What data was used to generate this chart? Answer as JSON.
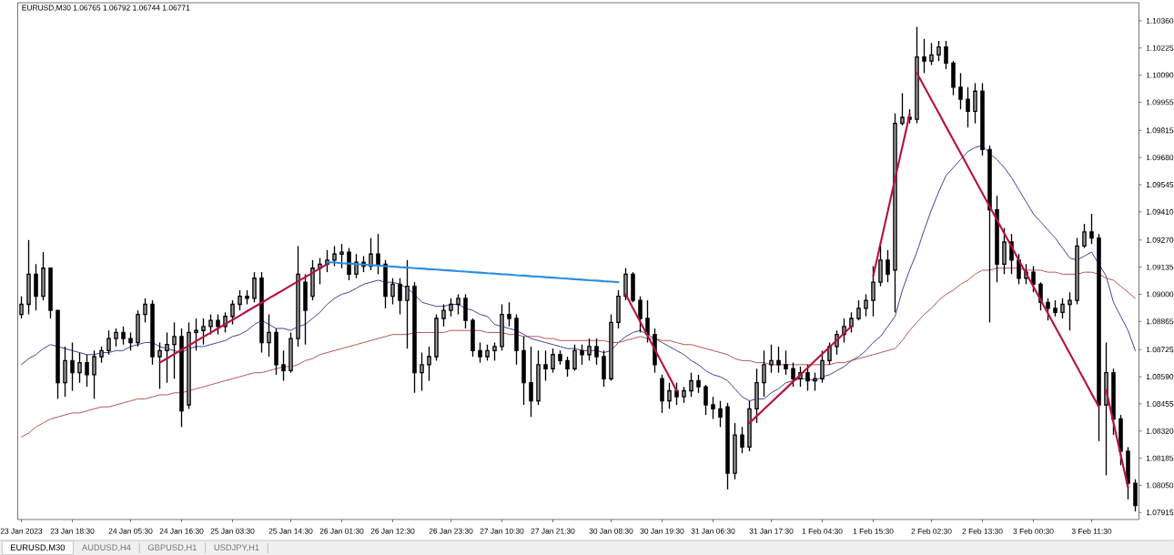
{
  "chart_data": {
    "type": "candlestick",
    "title": "EURUSD,M30 1.06765 1.06792 1.06744 1.06771",
    "color": "#000000",
    "categories": [
      "23 Jan 2023",
      null,
      null,
      null,
      null,
      null,
      null,
      "23 Jan 18:30",
      null,
      null,
      null,
      null,
      null,
      null,
      null,
      "24 Jan 05:30",
      null,
      null,
      null,
      null,
      null,
      null,
      "24 Jan 16:30",
      null,
      null,
      null,
      null,
      null,
      null,
      "25 Jan 03:30",
      null,
      null,
      null,
      null,
      null,
      null,
      null,
      "25 Jan 14:30",
      null,
      null,
      null,
      null,
      null,
      null,
      "26 Jan 01:30",
      null,
      null,
      null,
      null,
      null,
      null,
      "26 Jan 12:30",
      null,
      null,
      null,
      null,
      null,
      null,
      null,
      "26 Jan 23:30",
      null,
      null,
      null,
      null,
      null,
      null,
      "27 Jan 10:30",
      null,
      null,
      null,
      null,
      null,
      null,
      "27 Jan 21:30",
      null,
      null,
      null,
      null,
      null,
      null,
      null,
      "30 Jan 08:30",
      null,
      null,
      null,
      null,
      null,
      null,
      "30 Jan 19:30",
      null,
      null,
      null,
      null,
      null,
      null,
      "31 Jan 06:30",
      null,
      null,
      null,
      null,
      null,
      null,
      null,
      "31 Jan 17:30",
      null,
      null,
      null,
      null,
      null,
      null,
      "1 Feb 04:30",
      null,
      null,
      null,
      null,
      null,
      null,
      "1 Feb 15:30",
      null,
      null,
      null,
      null,
      null,
      null,
      null,
      "2 Feb 02:30",
      null,
      null,
      null,
      null,
      null,
      null,
      "2 Feb 13:30",
      null,
      null,
      null,
      null,
      null,
      null,
      "3 Feb 00:30",
      null,
      null,
      null,
      null,
      null,
      null,
      null,
      "3 Feb 11:30",
      null,
      null,
      null,
      null,
      null,
      null
    ],
    "ohlc": [
      [
        1.089,
        1.0899,
        1.0888,
        1.0895
      ],
      [
        1.0895,
        1.0927,
        1.089,
        1.091
      ],
      [
        1.091,
        1.0915,
        1.0892,
        1.0899
      ],
      [
        1.0899,
        1.0921,
        1.0897,
        1.0913
      ],
      [
        1.0913,
        1.0913,
        1.0888,
        1.0892
      ],
      [
        1.0892,
        1.0892,
        1.0848,
        1.0856
      ],
      [
        1.0856,
        1.0874,
        1.0849,
        1.0867
      ],
      [
        1.0867,
        1.0876,
        1.0852,
        1.0861
      ],
      [
        1.0861,
        1.0871,
        1.0856,
        1.0866
      ],
      [
        1.0866,
        1.087,
        1.0854,
        1.086
      ],
      [
        1.086,
        1.0872,
        1.0848,
        1.0869
      ],
      [
        1.0869,
        1.0874,
        1.0866,
        1.0872
      ],
      [
        1.0872,
        1.0882,
        1.087,
        1.0878
      ],
      [
        1.0878,
        1.0883,
        1.0874,
        1.0881
      ],
      [
        1.0881,
        1.0884,
        1.0875,
        1.0878
      ],
      [
        1.0878,
        1.0881,
        1.0872,
        1.0876
      ],
      [
        1.0876,
        1.0892,
        1.0874,
        1.089
      ],
      [
        1.089,
        1.0898,
        1.0886,
        1.0895
      ],
      [
        1.0895,
        1.0897,
        1.0865,
        1.0869
      ],
      [
        1.0869,
        1.0876,
        1.0853,
        1.0872
      ],
      [
        1.0872,
        1.0881,
        1.0856,
        1.0875
      ],
      [
        1.0875,
        1.0886,
        1.0858,
        1.0879
      ],
      [
        1.0879,
        1.0883,
        1.0834,
        1.0842
      ],
      [
        1.0845,
        1.0886,
        1.0843,
        1.0881
      ],
      [
        1.0881,
        1.0888,
        1.0872,
        1.0882
      ],
      [
        1.0882,
        1.0888,
        1.0875,
        1.0884
      ],
      [
        1.0884,
        1.089,
        1.088,
        1.0887
      ],
      [
        1.0887,
        1.089,
        1.088,
        1.0884
      ],
      [
        1.0884,
        1.0891,
        1.0881,
        1.0889
      ],
      [
        1.0889,
        1.0897,
        1.0885,
        1.0895
      ],
      [
        1.0895,
        1.0902,
        1.0892,
        1.0899
      ],
      [
        1.0899,
        1.0902,
        1.0895,
        1.0898
      ],
      [
        1.0898,
        1.0911,
        1.0896,
        1.0908
      ],
      [
        1.0908,
        1.0911,
        1.0871,
        1.0876
      ],
      [
        1.0876,
        1.089,
        1.0869,
        1.0881
      ],
      [
        1.0881,
        1.0883,
        1.086,
        1.0865
      ],
      [
        1.0865,
        1.0872,
        1.0857,
        1.0862
      ],
      [
        1.0862,
        1.0881,
        1.0861,
        1.0878
      ],
      [
        1.0878,
        1.0924,
        1.0874,
        1.091
      ],
      [
        1.0906,
        1.091,
        1.0875,
        1.0892
      ],
      [
        1.0899,
        1.0917,
        1.0897,
        1.0913
      ],
      [
        1.0913,
        1.0918,
        1.0905,
        1.0915
      ],
      [
        1.0915,
        1.0922,
        1.0911,
        1.0917
      ],
      [
        1.0917,
        1.0924,
        1.0914,
        1.092
      ],
      [
        1.092,
        1.0925,
        1.0913,
        1.0921
      ],
      [
        1.0921,
        1.0923,
        1.0907,
        1.091
      ],
      [
        1.091,
        1.092,
        1.0908,
        1.0916
      ],
      [
        1.0916,
        1.0919,
        1.0911,
        1.0914
      ],
      [
        1.0914,
        1.0928,
        1.0912,
        1.092
      ],
      [
        1.092,
        1.093,
        1.091,
        1.0915
      ],
      [
        1.0915,
        1.0917,
        1.0893,
        1.0899
      ],
      [
        1.0899,
        1.0908,
        1.0895,
        1.0905
      ],
      [
        1.0905,
        1.0908,
        1.089,
        1.0897
      ],
      [
        1.0897,
        1.0917,
        1.0873,
        1.0904
      ],
      [
        1.0904,
        1.0906,
        1.0851,
        1.0861
      ],
      [
        1.0861,
        1.0871,
        1.0852,
        1.0865
      ],
      [
        1.0865,
        1.0874,
        1.0857,
        1.0869
      ],
      [
        1.0869,
        1.089,
        1.0867,
        1.0888
      ],
      [
        1.0888,
        1.0895,
        1.0884,
        1.0892
      ],
      [
        1.0892,
        1.0898,
        1.0889,
        1.0895
      ],
      [
        1.0895,
        1.09,
        1.089,
        1.0898
      ],
      [
        1.0898,
        1.09,
        1.0883,
        1.0887
      ],
      [
        1.0887,
        1.0888,
        1.0869,
        1.0872
      ],
      [
        1.0872,
        1.0876,
        1.0866,
        1.0869
      ],
      [
        1.0869,
        1.0875,
        1.0867,
        1.0872
      ],
      [
        1.0872,
        1.0876,
        1.0867,
        1.0874
      ],
      [
        1.0874,
        1.0895,
        1.0872,
        1.089
      ],
      [
        1.089,
        1.0896,
        1.0884,
        1.0888
      ],
      [
        1.0888,
        1.089,
        1.0865,
        1.0872
      ],
      [
        1.0872,
        1.0879,
        1.0845,
        1.0856
      ],
      [
        1.0856,
        1.0874,
        1.0839,
        1.0847
      ],
      [
        1.0847,
        1.0872,
        1.0845,
        1.0865
      ],
      [
        1.0865,
        1.0872,
        1.0857,
        1.0863
      ],
      [
        1.0863,
        1.0873,
        1.0861,
        1.087
      ],
      [
        1.087,
        1.0872,
        1.0865,
        1.0867
      ],
      [
        1.0867,
        1.0869,
        1.0859,
        1.0863
      ],
      [
        1.0863,
        1.0875,
        1.0862,
        1.0872
      ],
      [
        1.0872,
        1.0875,
        1.0865,
        1.087
      ],
      [
        1.087,
        1.0878,
        1.0867,
        1.0874
      ],
      [
        1.0874,
        1.0878,
        1.0865,
        1.0869
      ],
      [
        1.0869,
        1.0872,
        1.0854,
        1.0858
      ],
      [
        1.0858,
        1.089,
        1.0857,
        1.0886
      ],
      [
        1.0886,
        1.0902,
        1.0883,
        1.0899
      ],
      [
        1.0899,
        1.0913,
        1.0897,
        1.091
      ],
      [
        1.091,
        1.0911,
        1.0896,
        1.0897
      ],
      [
        1.0897,
        1.0899,
        1.0881,
        1.0888
      ],
      [
        1.0888,
        1.0897,
        1.0876,
        1.088
      ],
      [
        1.088,
        1.0883,
        1.0861,
        1.0865
      ],
      [
        1.0858,
        1.086,
        1.0841,
        1.0847
      ],
      [
        1.0847,
        1.0856,
        1.0843,
        1.0852
      ],
      [
        1.0852,
        1.0856,
        1.0845,
        1.0849
      ],
      [
        1.0849,
        1.0854,
        1.0846,
        1.0852
      ],
      [
        1.0852,
        1.0861,
        1.0849,
        1.0857
      ],
      [
        1.0857,
        1.086,
        1.0851,
        1.0854
      ],
      [
        1.0854,
        1.0855,
        1.084,
        1.0845
      ],
      [
        1.0845,
        1.0849,
        1.0838,
        1.0843
      ],
      [
        1.0843,
        1.0847,
        1.0834,
        1.0839
      ],
      [
        1.0844,
        1.0846,
        1.0803,
        1.0811
      ],
      [
        1.0811,
        1.0836,
        1.0808,
        1.083
      ],
      [
        1.083,
        1.0834,
        1.0821,
        1.0824
      ],
      [
        1.0824,
        1.0847,
        1.0822,
        1.0843
      ],
      [
        1.0843,
        1.0863,
        1.0836,
        1.0856
      ],
      [
        1.0856,
        1.0872,
        1.0849,
        1.0865
      ],
      [
        1.0865,
        1.0875,
        1.0861,
        1.0867
      ],
      [
        1.0867,
        1.0874,
        1.0861,
        1.0865
      ],
      [
        1.0865,
        1.0872,
        1.086,
        1.0863
      ],
      [
        1.0863,
        1.0866,
        1.0854,
        1.0858
      ],
      [
        1.0858,
        1.0864,
        1.0854,
        1.0861
      ],
      [
        1.0861,
        1.0865,
        1.0852,
        1.0857
      ],
      [
        1.0857,
        1.0861,
        1.0852,
        1.0858
      ],
      [
        1.0858,
        1.0872,
        1.0856,
        1.0867
      ],
      [
        1.0867,
        1.0876,
        1.0865,
        1.0874
      ],
      [
        1.0874,
        1.0882,
        1.087,
        1.088
      ],
      [
        1.088,
        1.0888,
        1.0876,
        1.0884
      ],
      [
        1.0884,
        1.0891,
        1.0881,
        1.0888
      ],
      [
        1.0888,
        1.0897,
        1.0887,
        1.0893
      ],
      [
        1.0893,
        1.09,
        1.0889,
        1.0897
      ],
      [
        1.0897,
        1.0914,
        1.0889,
        1.0906
      ],
      [
        1.0906,
        1.0924,
        1.0904,
        1.0917
      ],
      [
        1.0917,
        1.0922,
        1.0906,
        1.091
      ],
      [
        1.0912,
        1.099,
        1.0891,
        1.0985
      ],
      [
        1.0985,
        1.1,
        1.0984,
        1.0988
      ],
      [
        1.0988,
        1.0992,
        1.0985,
        1.0987
      ],
      [
        1.0987,
        1.1033,
        1.0985,
        1.1018
      ],
      [
        1.1018,
        1.1027,
        1.101,
        1.1016
      ],
      [
        1.1016,
        1.1025,
        1.1014,
        1.1019
      ],
      [
        1.1019,
        1.1026,
        1.1016,
        1.1023
      ],
      [
        1.1023,
        1.1026,
        1.1012,
        1.1015
      ],
      [
        1.1015,
        1.1016,
        1.0999,
        1.1003
      ],
      [
        1.1003,
        1.101,
        1.0992,
        1.0997
      ],
      [
        1.0997,
        1.1003,
        1.0983,
        1.0991
      ],
      [
        1.0991,
        1.1005,
        1.0985,
        1.1001
      ],
      [
        1.1001,
        1.1005,
        1.0969,
        1.0972
      ],
      [
        1.0972,
        1.0974,
        1.0886,
        1.0942
      ],
      [
        1.0942,
        1.0949,
        1.0906,
        1.0915
      ],
      [
        1.0915,
        1.0933,
        1.091,
        1.0926
      ],
      [
        1.0926,
        1.093,
        1.091,
        1.0917
      ],
      [
        1.0917,
        1.092,
        1.0905,
        1.0908
      ],
      [
        1.0908,
        1.0915,
        1.0905,
        1.0911
      ],
      [
        1.0911,
        1.0914,
        1.0901,
        1.0905
      ],
      [
        1.0905,
        1.0906,
        1.0892,
        1.0896
      ],
      [
        1.0896,
        1.0898,
        1.0887,
        1.0893
      ],
      [
        1.0893,
        1.0897,
        1.0889,
        1.0891
      ],
      [
        1.0891,
        1.0898,
        1.0888,
        1.0895
      ],
      [
        1.0895,
        1.0901,
        1.0882,
        1.0897
      ],
      [
        1.0897,
        1.0928,
        1.0895,
        1.0924
      ],
      [
        1.0924,
        1.0935,
        1.0923,
        1.0931
      ],
      [
        1.0931,
        1.094,
        1.0925,
        1.0928
      ],
      [
        1.0928,
        1.093,
        1.0827,
        1.0845
      ],
      [
        1.0845,
        1.0876,
        1.081,
        1.0861
      ],
      [
        1.0861,
        1.0863,
        1.083,
        1.0838
      ],
      [
        1.0838,
        1.084,
        1.0815,
        1.0822
      ],
      [
        1.0822,
        1.0824,
        1.0798,
        1.0806
      ],
      [
        1.0806,
        1.0808,
        1.0792,
        1.0795
      ]
    ],
    "series": [
      {
        "type": "line",
        "color": "#35358f",
        "values": [
          1.0865,
          1.0868,
          1.087,
          1.0873,
          1.0875,
          1.0874,
          1.0873,
          1.0872,
          1.0871,
          1.087,
          1.087,
          1.0871,
          1.0871,
          1.0872,
          1.0872,
          1.0874,
          1.0875,
          1.0876,
          1.0876,
          1.0874,
          1.0873,
          1.0872,
          1.0871,
          1.0873,
          1.0874,
          1.0874,
          1.0875,
          1.0876,
          1.0877,
          1.0879,
          1.088,
          1.0882,
          1.0885,
          1.0887,
          1.0885,
          1.0883,
          1.0883,
          1.0882,
          1.0884,
          1.0885,
          1.0888,
          1.0891,
          1.0895,
          1.0898,
          1.09,
          1.0901,
          1.0903,
          1.0905,
          1.0906,
          1.0907,
          1.0906,
          1.0906,
          1.0905,
          1.0903,
          1.09,
          1.0896,
          1.0895,
          1.0894,
          1.0894,
          1.0895,
          1.0895,
          1.0893,
          1.0892,
          1.089,
          1.0889,
          1.0885,
          1.0884,
          1.0883,
          1.0882,
          1.088,
          1.0878,
          1.0877,
          1.0876,
          1.0875,
          1.0874,
          1.0873,
          1.0873,
          1.0872,
          1.0872,
          1.0872,
          1.0871,
          1.0872,
          1.0876,
          1.0879,
          1.0881,
          1.0882,
          1.088,
          1.0878,
          1.0876,
          1.0874,
          1.0872,
          1.087,
          1.0867,
          1.0865,
          1.0862,
          1.086,
          1.0859,
          1.0857,
          1.0853,
          1.0849,
          1.0847,
          1.0848,
          1.0848,
          1.0851,
          1.0853,
          1.0856,
          1.0857,
          1.0858,
          1.0858,
          1.0857,
          1.0859,
          1.086,
          1.0862,
          1.0864,
          1.0867,
          1.0869,
          1.0872,
          1.0876,
          1.0879,
          1.0884,
          1.0889,
          1.0902,
          1.0912,
          1.0921,
          1.0932,
          1.0942,
          1.0951,
          1.0959,
          1.0963,
          1.0967,
          1.0971,
          1.0973,
          1.0974,
          1.097,
          1.0967,
          1.0963,
          1.0958,
          1.0952,
          1.0946,
          1.094,
          1.0936,
          1.0932,
          1.0928,
          1.0923,
          1.0918,
          1.0917,
          1.0919,
          1.0921,
          1.0915,
          1.0909,
          1.0896,
          1.0889,
          1.0882,
          1.0872
        ]
      },
      {
        "type": "line",
        "color": "#b24a4a",
        "values": [
          1.0829,
          1.0831,
          1.0834,
          1.0836,
          1.0838,
          1.0839,
          1.084,
          1.0841,
          1.0841,
          1.0842,
          1.0843,
          1.0844,
          1.0844,
          1.0845,
          1.0846,
          1.0847,
          1.0848,
          1.0848,
          1.0849,
          1.085,
          1.085,
          1.0851,
          1.0851,
          1.0852,
          1.0853,
          1.0854,
          1.0855,
          1.0856,
          1.0857,
          1.0858,
          1.0859,
          1.086,
          1.0861,
          1.0861,
          1.0862,
          1.0863,
          1.0864,
          1.0864,
          1.0865,
          1.0867,
          1.0868,
          1.087,
          1.0871,
          1.0872,
          1.0873,
          1.0874,
          1.0875,
          1.0876,
          1.0877,
          1.0878,
          1.0879,
          1.088,
          1.088,
          1.088,
          1.0881,
          1.0881,
          1.0881,
          1.0881,
          1.0881,
          1.0882,
          1.0882,
          1.0882,
          1.0882,
          1.0882,
          1.0881,
          1.0881,
          1.0881,
          1.088,
          1.088,
          1.0879,
          1.0879,
          1.0879,
          1.0878,
          1.0878,
          1.0877,
          1.0877,
          1.0877,
          1.0877,
          1.0877,
          1.0877,
          1.0877,
          1.0876,
          1.0876,
          1.0877,
          1.0878,
          1.0879,
          1.0878,
          1.0878,
          1.0877,
          1.0877,
          1.0876,
          1.0875,
          1.0875,
          1.0874,
          1.0873,
          1.0872,
          1.0871,
          1.087,
          1.0868,
          1.0867,
          1.0867,
          1.0866,
          1.0866,
          1.0865,
          1.0865,
          1.0865,
          1.0865,
          1.0865,
          1.0865,
          1.0865,
          1.0865,
          1.0865,
          1.0866,
          1.0866,
          1.0867,
          1.0868,
          1.0869,
          1.087,
          1.0871,
          1.0872,
          1.0873,
          1.0877,
          1.0882,
          1.0886,
          1.089,
          1.0893,
          1.0897,
          1.09,
          1.0902,
          1.0905,
          1.0907,
          1.091,
          1.0912,
          1.0912,
          1.0913,
          1.0913,
          1.0913,
          1.0913,
          1.0912,
          1.0912,
          1.0912,
          1.0911,
          1.0911,
          1.091,
          1.091,
          1.091,
          1.0911,
          1.0911,
          1.091,
          1.0908,
          1.0907,
          1.0904,
          1.0901,
          1.0898
        ]
      },
      {
        "type": "line",
        "color": "#b8123f",
        "values": [
          null,
          null,
          null,
          null,
          null,
          null,
          null,
          null,
          null,
          null,
          null,
          null,
          null,
          null,
          null,
          null,
          null,
          null,
          null,
          1.0866,
          1.08681,
          1.08703,
          1.08724,
          1.08745,
          1.08767,
          1.08788,
          1.08809,
          1.0883,
          1.08852,
          1.08873,
          1.08894,
          1.08916,
          1.08937,
          1.08958,
          1.0898,
          1.09001,
          1.09022,
          1.09043,
          1.09065,
          1.09086,
          1.09107,
          1.09129,
          1.0915,
          null,
          null,
          null,
          null,
          null,
          null,
          null,
          null,
          null,
          null,
          null,
          null,
          null,
          null,
          null,
          null,
          null,
          null,
          null,
          null,
          null,
          null,
          null,
          null,
          null,
          null,
          null,
          null,
          null,
          null,
          null,
          null,
          null,
          null,
          null,
          null,
          null,
          null,
          null,
          null,
          null,
          null,
          null,
          null,
          null,
          null,
          null,
          null,
          null,
          null,
          null,
          null,
          null,
          null,
          null,
          null,
          null,
          1.0836,
          1.08394,
          1.08429,
          1.08463,
          1.08497,
          1.08531,
          1.08566,
          1.086,
          1.08634,
          1.08669,
          1.08703,
          1.08737,
          1.08771,
          1.08806,
          1.0884,
          null,
          null,
          null,
          null,
          null,
          null,
          null,
          null,
          1.101,
          1.10034,
          1.09967,
          1.09901,
          1.09834,
          1.09768,
          1.09702,
          1.09635,
          1.09569,
          1.09502,
          1.09436,
          1.0937,
          1.09303,
          1.09237,
          1.0917,
          1.09104,
          1.09038,
          1.08971,
          1.08905,
          1.08838,
          1.08772,
          1.08706,
          1.08639,
          1.08573,
          1.08506,
          1.0844,
          null,
          null,
          null,
          null,
          null
        ]
      },
      {
        "type": "line",
        "color": "#b8123f",
        "values": [
          null,
          null,
          null,
          null,
          null,
          null,
          null,
          null,
          null,
          null,
          null,
          null,
          null,
          null,
          null,
          null,
          null,
          null,
          null,
          null,
          null,
          null,
          null,
          null,
          null,
          null,
          null,
          null,
          null,
          null,
          null,
          null,
          null,
          null,
          null,
          null,
          null,
          null,
          null,
          null,
          null,
          null,
          null,
          null,
          null,
          null,
          null,
          null,
          null,
          null,
          null,
          null,
          null,
          null,
          null,
          null,
          null,
          null,
          null,
          null,
          null,
          null,
          null,
          null,
          null,
          null,
          null,
          null,
          null,
          null,
          null,
          null,
          null,
          null,
          null,
          null,
          null,
          null,
          null,
          null,
          null,
          null,
          null,
          1.09,
          1.08931,
          1.08863,
          1.08794,
          1.08726,
          1.08657,
          1.08589,
          1.0852,
          null,
          null,
          null,
          null,
          null,
          null,
          null,
          null,
          null,
          null,
          null,
          null,
          null,
          null,
          null,
          null,
          null,
          null,
          null,
          null,
          null,
          null,
          null,
          null,
          null,
          null,
          1.09091,
          1.09252,
          1.09413,
          1.09574,
          1.09734,
          1.09895,
          null,
          null,
          null,
          null,
          null,
          null,
          null,
          null,
          null,
          null,
          null,
          null,
          null,
          null,
          null,
          null,
          null,
          null,
          null,
          null,
          null,
          null,
          null,
          null,
          null,
          null,
          1.08524,
          1.08362,
          1.082,
          1.08038,
          null
        ]
      },
      {
        "type": "line",
        "color": "#2a8de0",
        "values": [
          null,
          null,
          null,
          null,
          null,
          null,
          null,
          null,
          null,
          null,
          null,
          null,
          null,
          null,
          null,
          null,
          null,
          null,
          null,
          null,
          null,
          null,
          null,
          null,
          null,
          null,
          null,
          null,
          null,
          null,
          null,
          null,
          null,
          null,
          null,
          null,
          null,
          null,
          null,
          null,
          null,
          null,
          1.0916,
          1.09158,
          1.09155,
          1.09153,
          1.0915,
          1.09148,
          1.09145,
          1.09143,
          1.0914,
          1.09138,
          1.09135,
          1.09133,
          1.0913,
          1.09128,
          1.09125,
          1.09123,
          1.0912,
          1.09118,
          1.09115,
          1.09113,
          1.0911,
          1.09108,
          1.09105,
          1.09103,
          1.091,
          1.09098,
          1.09095,
          1.09093,
          1.0909,
          1.09088,
          1.09085,
          1.09083,
          1.0908,
          1.09078,
          1.09075,
          1.09073,
          1.0907,
          1.09068,
          1.09065,
          1.09063,
          1.0906,
          null,
          null,
          null,
          null,
          null,
          null,
          null,
          null,
          null,
          null,
          null,
          null,
          null,
          null,
          null,
          null,
          null,
          null,
          null,
          null,
          null,
          null,
          null,
          null,
          null,
          null,
          null,
          null,
          null,
          null,
          null,
          null,
          null,
          null,
          null,
          null,
          null,
          null,
          null,
          null,
          null,
          null,
          null,
          null,
          null,
          null,
          null,
          null,
          null,
          null,
          null,
          null,
          null,
          null,
          null,
          null,
          null,
          null,
          null,
          null,
          null,
          null,
          null,
          null,
          null,
          null,
          null,
          null,
          null,
          null,
          null
        ]
      }
    ],
    "ylim": [
      1.0788,
      1.1045
    ],
    "yticks": [
      {
        "value": 1.1036,
        "label": "1.10360"
      },
      {
        "value": 1.10225,
        "label": "1.10225"
      },
      {
        "value": 1.1009,
        "label": "1.10090"
      },
      {
        "value": 1.09955,
        "label": "1.09955"
      },
      {
        "value": 1.09815,
        "label": "1.09815"
      },
      {
        "value": 1.0968,
        "label": "1.09680"
      },
      {
        "value": 1.09545,
        "label": "1.09545"
      },
      {
        "value": 1.0941,
        "label": "1.09410"
      },
      {
        "value": 1.0927,
        "label": "1.09270"
      },
      {
        "value": 1.09135,
        "label": "1.09135"
      },
      {
        "value": 1.09,
        "label": "1.09000"
      },
      {
        "value": 1.08865,
        "label": "1.08865"
      },
      {
        "value": 1.08725,
        "label": "1.08725"
      },
      {
        "value": 1.0859,
        "label": "1.08590"
      },
      {
        "value": 1.08455,
        "label": "1.08455"
      },
      {
        "value": 1.0832,
        "label": "1.08320"
      },
      {
        "value": 1.08185,
        "label": "1.08185"
      },
      {
        "value": 1.0805,
        "label": "1.08050"
      },
      {
        "value": 1.07915,
        "label": "1.07915"
      }
    ],
    "annotations": [
      "EURUSD,M30",
      "AUDUSD,H4",
      "GBPUSD,H1",
      "USDJPY,H1"
    ]
  }
}
